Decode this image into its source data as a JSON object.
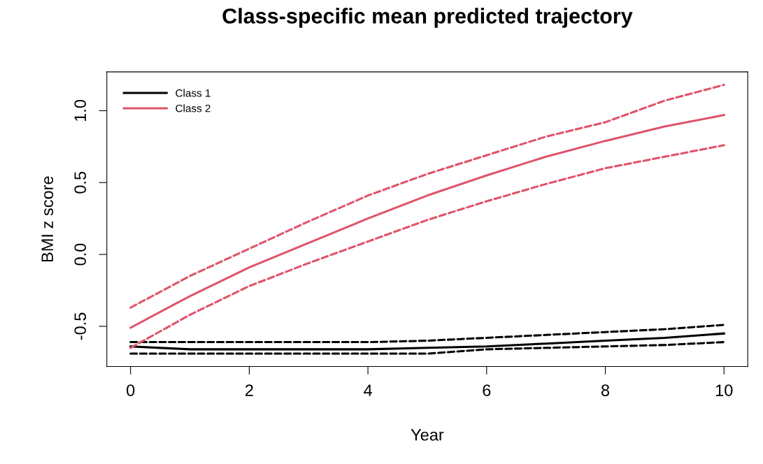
{
  "chart_data": {
    "type": "line",
    "title": "Class-specific mean predicted trajectory",
    "xlabel": "Year",
    "ylabel": "BMI z score",
    "x": [
      0,
      1,
      2,
      3,
      4,
      5,
      6,
      7,
      8,
      9,
      10
    ],
    "series": [
      {
        "name": "Class 1",
        "color": "#000000",
        "values": [
          -0.64,
          -0.66,
          -0.66,
          -0.66,
          -0.66,
          -0.65,
          -0.64,
          -0.62,
          -0.6,
          -0.58,
          -0.55
        ]
      },
      {
        "name": "Class 2",
        "color": "#df536b",
        "values": [
          -0.51,
          -0.29,
          -0.09,
          0.08,
          0.25,
          0.41,
          0.55,
          0.68,
          0.79,
          0.89,
          0.97
        ]
      },
      {
        "color": "#000000",
        "line_style": "dashed",
        "values": [
          -0.69,
          -0.69,
          -0.69,
          -0.69,
          -0.69,
          -0.69,
          -0.66,
          -0.65,
          -0.64,
          -0.63,
          -0.61
        ]
      },
      {
        "color": "#000000",
        "line_style": "dashed",
        "values": [
          -0.61,
          -0.61,
          -0.61,
          -0.61,
          -0.61,
          -0.6,
          -0.58,
          -0.56,
          -0.54,
          -0.52,
          -0.49
        ]
      },
      {
        "color": "#df536b",
        "line_style": "dashed",
        "values": [
          -0.65,
          -0.42,
          -0.22,
          -0.06,
          0.09,
          0.24,
          0.37,
          0.49,
          0.6,
          0.68,
          0.76
        ]
      },
      {
        "color": "#df536b",
        "line_style": "dashed",
        "values": [
          -0.37,
          -0.15,
          0.04,
          0.23,
          0.41,
          0.56,
          0.69,
          0.82,
          0.92,
          1.07,
          1.18
        ]
      }
    ],
    "xlim": [
      -0.4,
      10.4
    ],
    "ylim": [
      -0.78,
      1.27
    ],
    "xticks": [
      0,
      2,
      4,
      6,
      8,
      10
    ],
    "yticks": [
      -0.5,
      {
        "value": 0,
        "label": "0.0"
      },
      0.5,
      {
        "value": 1,
        "label": "1.0"
      }
    ],
    "grid": false,
    "legend": "top left",
    "marker": "none",
    "line_style": "solid"
  }
}
